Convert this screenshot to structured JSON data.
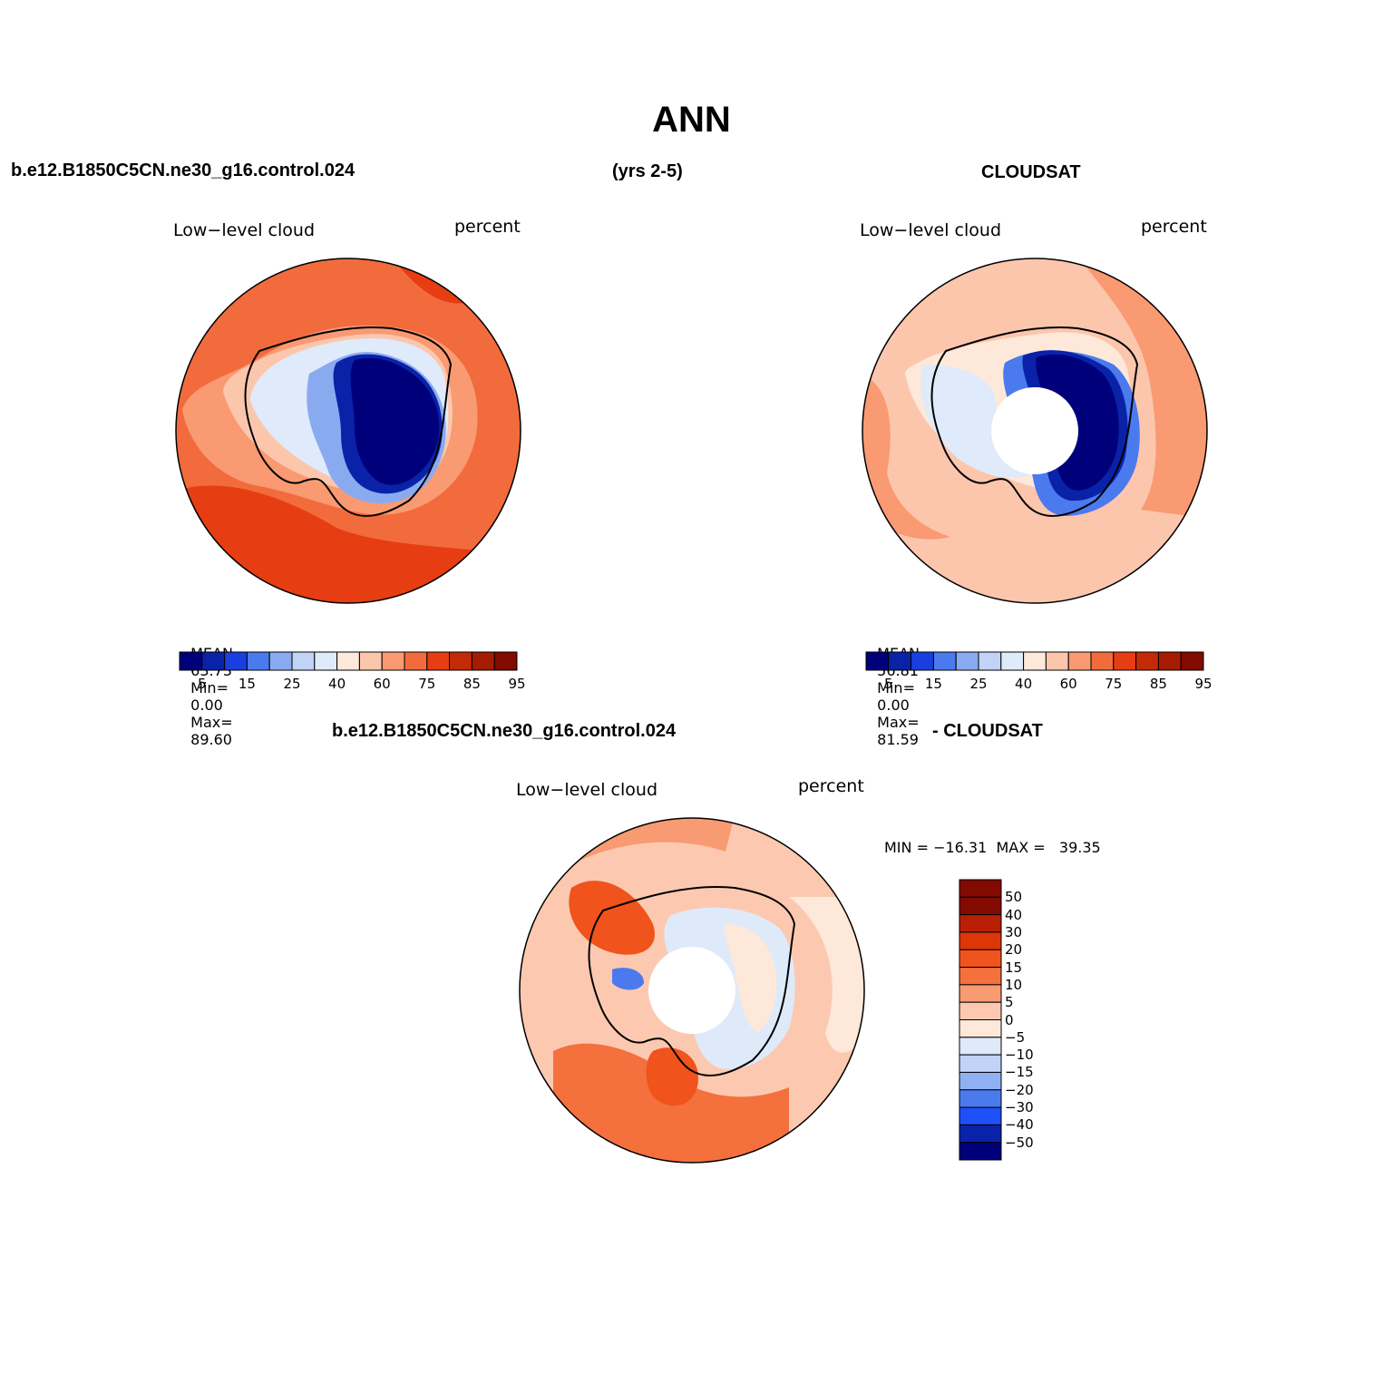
{
  "title": "ANN",
  "top_left_header": "b.e12.B1850C5CN.ne30_g16.control.024",
  "top_mid_header": "(yrs 2-5)",
  "top_right_header": "CLOUDSAT",
  "panels": [
    {
      "id": "model",
      "variable": "Low−level cloud",
      "units": "percent",
      "mean_label": "MEAN=",
      "mean": "63.73",
      "min_label": "Min=",
      "min": "0.00",
      "max_label": "Max=",
      "max": "89.60",
      "colorbar_labels": [
        "5",
        "15",
        "25",
        "40",
        "60",
        "75",
        "85",
        "95"
      ]
    },
    {
      "id": "cloudsat",
      "variable": "Low−level cloud",
      "units": "percent",
      "mean_label": "MEAN=",
      "mean": "56.81",
      "min_label": "Min=",
      "min": "0.00",
      "max_label": "Max=",
      "max": "81.59",
      "colorbar_labels": [
        "5",
        "15",
        "25",
        "40",
        "60",
        "75",
        "85",
        "95"
      ]
    }
  ],
  "diff": {
    "header_left": "b.e12.B1850C5CN.ne30_g16.control.024",
    "header_right": "- CLOUDSAT",
    "variable": "Low−level cloud",
    "units": "percent",
    "minmax_text": "MIN = −16.31  MAX =   39.35",
    "colorbar_labels": [
      "50",
      "40",
      "30",
      "20",
      "15",
      "10",
      "5",
      "0",
      "−5",
      "−10",
      "−15",
      "−20",
      "−30",
      "−40",
      "−50"
    ]
  },
  "colors": {
    "abs_scale": [
      "#00007a",
      "#0a22a8",
      "#1a3fe0",
      "#4a7aee",
      "#8aaaf0",
      "#c1d3f6",
      "#dfeafa",
      "#fde8da",
      "#fcc6ad",
      "#f99a72",
      "#f26b3d",
      "#e63d12",
      "#c42b05",
      "#a51c02",
      "#820a00"
    ],
    "diff_scale": [
      "#820a00",
      "#b81f05",
      "#dc3707",
      "#f0531c",
      "#f4703c",
      "#f89a72",
      "#fcc9b0",
      "#fde8da",
      "#deeafa",
      "#c1d3f6",
      "#8fb0f2",
      "#4a7aee",
      "#1f4ff8",
      "#0a22a8",
      "#00007a"
    ]
  }
}
